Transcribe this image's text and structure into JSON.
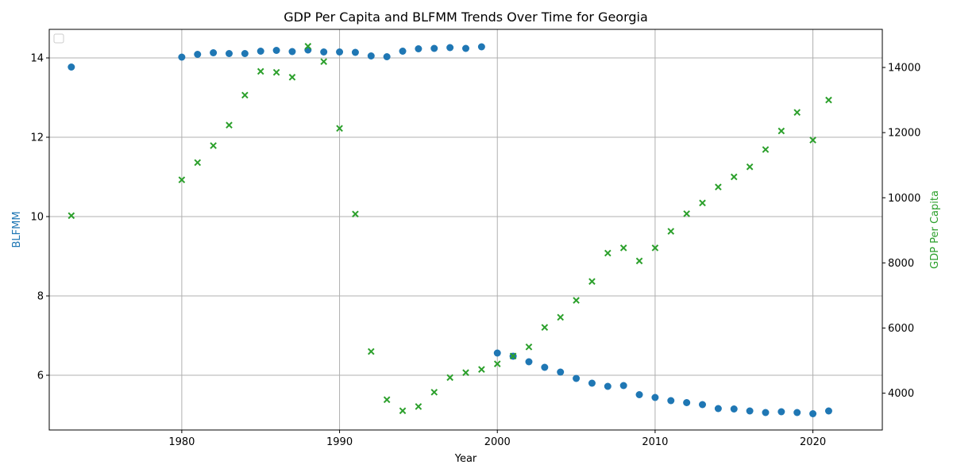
{
  "chart_data": {
    "type": "scatter",
    "title": "GDP Per Capita and BLFMM Trends Over Time for Georgia",
    "xlabel": "Year",
    "ylabel_left": "BLFMM",
    "ylabel_right": "GDP Per Capita",
    "xlim": [
      1971.6,
      2024.4
    ],
    "ylim_left": [
      4.62,
      14.72
    ],
    "ylim_right": [
      2870,
      15170
    ],
    "x_ticks": [
      1980,
      1990,
      2000,
      2010,
      2020
    ],
    "y_ticks_left": [
      6,
      8,
      10,
      12,
      14
    ],
    "y_ticks_right": [
      4000,
      6000,
      8000,
      10000,
      12000,
      14000
    ],
    "grid": true,
    "legend_placement": "upper-left",
    "colors": {
      "blfmm": "#1f77b4",
      "gdp": "#2ca02c",
      "axis_left_label": "#1f77b4",
      "axis_right_label": "#2ca02c",
      "grid": "#b0b0b0"
    },
    "series": [
      {
        "key": "blfmm",
        "axis": "left",
        "marker": "circle",
        "x": [
          1973,
          1980,
          1981,
          1982,
          1983,
          1984,
          1985,
          1986,
          1987,
          1988,
          1989,
          1990,
          1991,
          1992,
          1993,
          1994,
          1995,
          1996,
          1997,
          1998,
          1999,
          2000,
          2001,
          2002,
          2003,
          2004,
          2005,
          2006,
          2007,
          2008,
          2009,
          2010,
          2011,
          2012,
          2013,
          2014,
          2015,
          2016,
          2017,
          2018,
          2019,
          2020,
          2021
        ],
        "y": [
          13.77,
          14.02,
          14.09,
          14.13,
          14.11,
          14.11,
          14.17,
          14.19,
          14.16,
          14.2,
          14.15,
          14.15,
          14.14,
          14.05,
          14.03,
          14.17,
          14.23,
          14.24,
          14.26,
          14.24,
          14.28,
          6.56,
          6.48,
          6.34,
          6.2,
          6.08,
          5.92,
          5.8,
          5.72,
          5.74,
          5.51,
          5.44,
          5.36,
          5.31,
          5.26,
          5.16,
          5.15,
          5.1,
          5.06,
          5.08,
          5.06,
          5.03,
          5.1
        ]
      },
      {
        "key": "gdp",
        "axis": "right",
        "marker": "x",
        "x": [
          1973,
          1980,
          1981,
          1982,
          1983,
          1984,
          1985,
          1986,
          1987,
          1988,
          1989,
          1990,
          1991,
          1992,
          1993,
          1994,
          1995,
          1996,
          1997,
          1998,
          1999,
          2000,
          2001,
          2002,
          2003,
          2004,
          2005,
          2006,
          2007,
          2008,
          2009,
          2010,
          2011,
          2012,
          2013,
          2014,
          2015,
          2016,
          2017,
          2018,
          2019,
          2020,
          2021
        ],
        "y": [
          9450,
          10550,
          11080,
          11600,
          12230,
          13150,
          13880,
          13850,
          13700,
          14650,
          14180,
          12130,
          9500,
          5280,
          3800,
          3460,
          3590,
          4030,
          4480,
          4630,
          4730,
          4900,
          5140,
          5420,
          6020,
          6330,
          6850,
          7430,
          8300,
          8460,
          8060,
          8460,
          8970,
          9510,
          9840,
          10330,
          10640,
          10950,
          11480,
          12050,
          12620,
          11770,
          13000
        ]
      }
    ]
  }
}
